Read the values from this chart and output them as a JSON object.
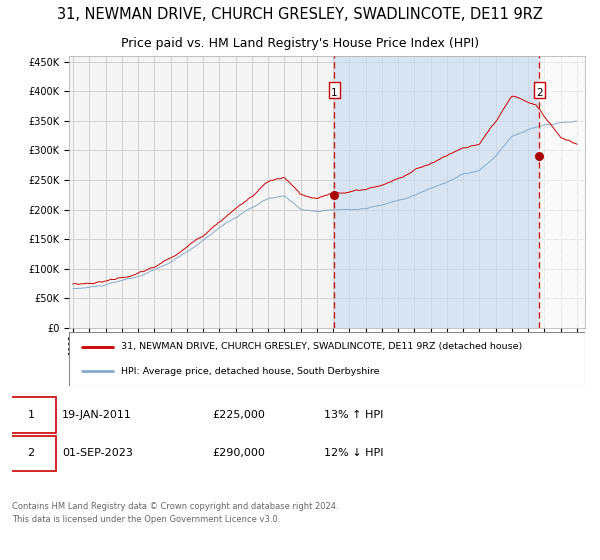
{
  "title": "31, NEWMAN DRIVE, CHURCH GRESLEY, SWADLINCOTE, DE11 9RZ",
  "subtitle": "Price paid vs. HM Land Registry's House Price Index (HPI)",
  "title_fontsize": 10.5,
  "subtitle_fontsize": 9,
  "ylim": [
    0,
    460000
  ],
  "yticks": [
    0,
    50000,
    100000,
    150000,
    200000,
    250000,
    300000,
    350000,
    400000,
    450000
  ],
  "ytick_labels": [
    "£0",
    "£50K",
    "£100K",
    "£150K",
    "£200K",
    "£250K",
    "£300K",
    "£350K",
    "£400K",
    "£450K"
  ],
  "xlim_start": 1994.75,
  "xlim_end": 2026.5,
  "xticks": [
    1995,
    1996,
    1997,
    1998,
    1999,
    2000,
    2001,
    2002,
    2003,
    2004,
    2005,
    2006,
    2007,
    2008,
    2009,
    2010,
    2011,
    2012,
    2013,
    2014,
    2015,
    2016,
    2017,
    2018,
    2019,
    2020,
    2021,
    2022,
    2023,
    2024,
    2025,
    2026
  ],
  "line1_color": "#cc0000",
  "line2_color": "#88aacc",
  "plot_bg_white": "#f8f8f8",
  "plot_bg_shaded": "#ddeeff",
  "grid_color": "#cccccc",
  "sale1_date": 2011.05,
  "sale1_price": 225000,
  "sale1_label": "1",
  "sale2_date": 2023.67,
  "sale2_price": 290000,
  "sale2_label": "2",
  "legend_line1": "31, NEWMAN DRIVE, CHURCH GRESLEY, SWADLINCOTE, DE11 9RZ (detached house)",
  "legend_line2": "HPI: Average price, detached house, South Derbyshire",
  "table_row1": [
    "1",
    "19-JAN-2011",
    "£225,000",
    "13% ↑ HPI"
  ],
  "table_row2": [
    "2",
    "01-SEP-2023",
    "£290,000",
    "12% ↓ HPI"
  ],
  "footer": "Contains HM Land Registry data © Crown copyright and database right 2024.\nThis data is licensed under the Open Government Licence v3.0."
}
